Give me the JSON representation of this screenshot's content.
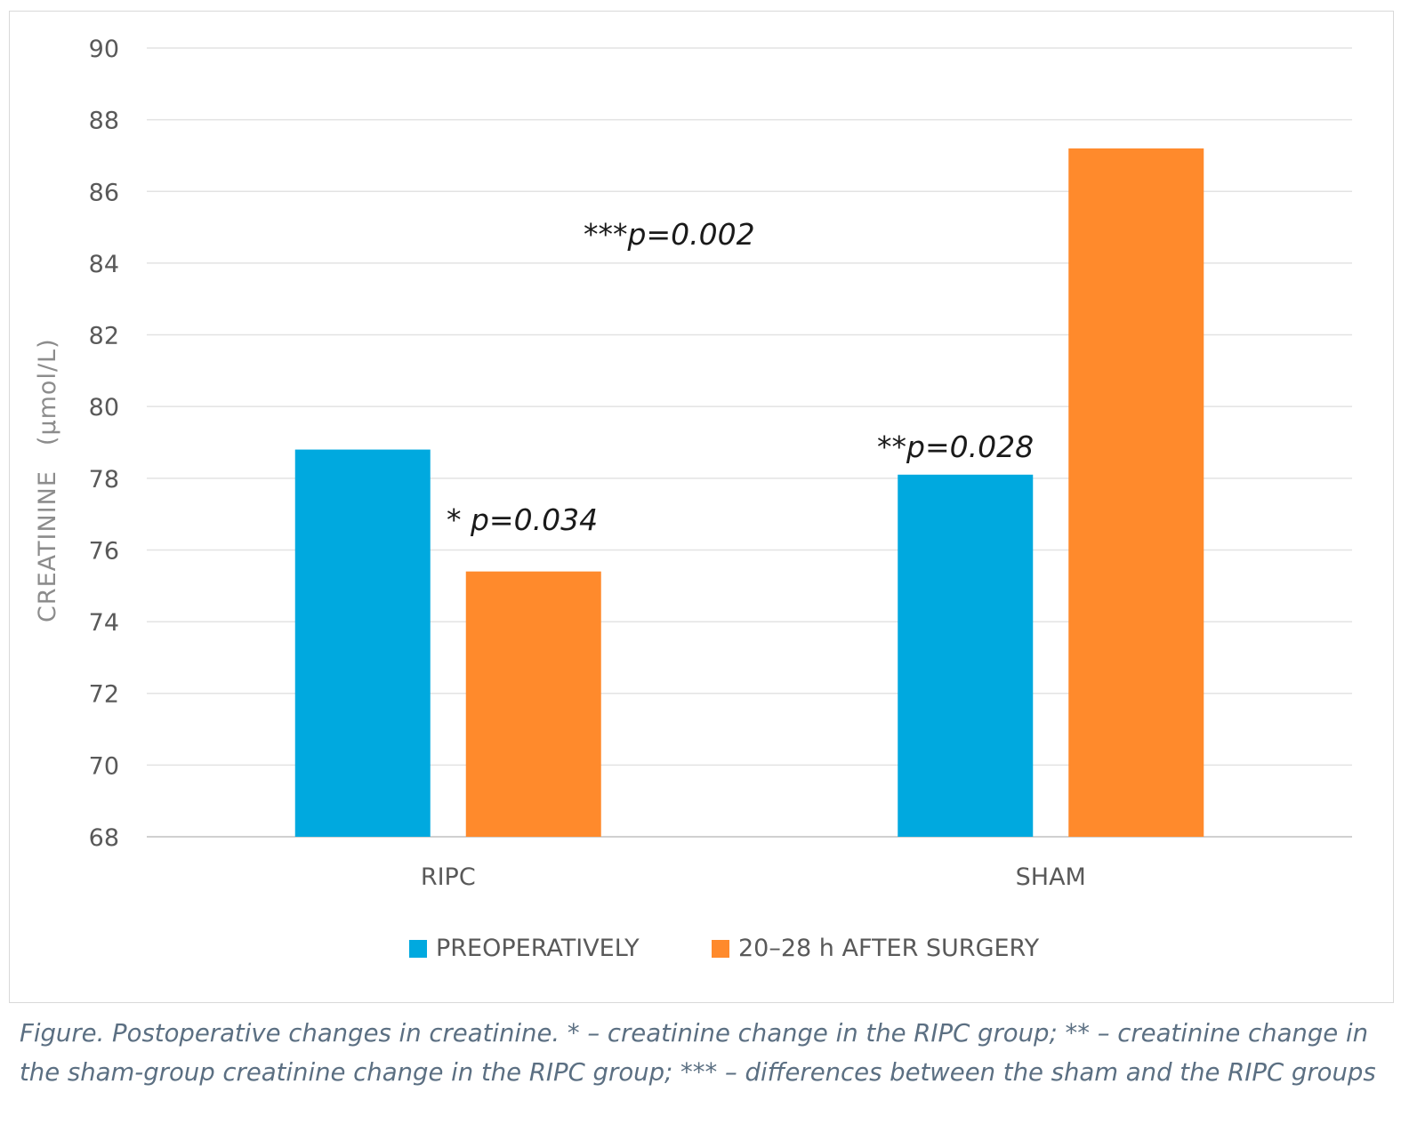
{
  "chart_data": {
    "type": "bar",
    "categories": [
      "RIPC",
      "SHAM"
    ],
    "series": [
      {
        "name": "PREOPERATIVELY",
        "values": [
          78.8,
          78.1
        ],
        "color": "#00a9df"
      },
      {
        "name": "20–28 h AFTER SURGERY",
        "values": [
          75.4,
          87.2
        ],
        "color": "#ff8a2c"
      }
    ],
    "ylabel_main": "CREATININE",
    "ylabel_unit": "(μmol/L)",
    "ylim": [
      68,
      90
    ],
    "yticks": [
      68,
      70,
      72,
      74,
      76,
      78,
      80,
      82,
      84,
      86,
      88,
      90
    ],
    "grid": true,
    "legend": "bottom",
    "annotations": {
      "ripc": "* p=0.034",
      "sham": "**p=0.028",
      "between": "***p=0.002"
    }
  },
  "caption": "Figure. Postoperative changes in creatinine. * – creatinine change in the RIPC group; ** – creatinine change in the sham-group creatinine change in the RIPC group; *** – differences between the sham and the RIPC groups"
}
